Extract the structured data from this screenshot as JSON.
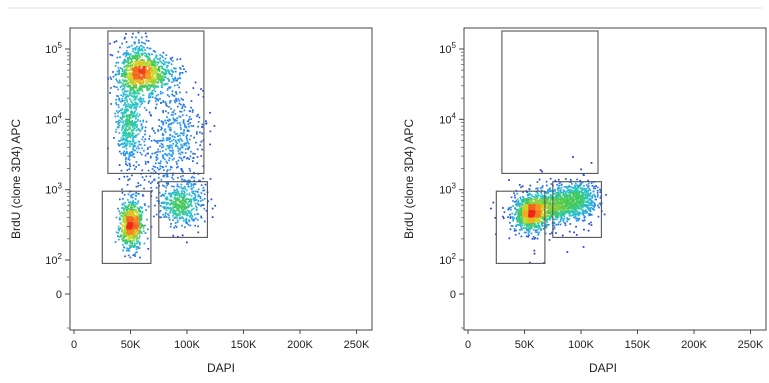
{
  "chart_data": [
    {
      "type": "scatter",
      "xlabel": "DAPI",
      "ylabel": "BrdU (clone 3D4) APC",
      "x_scale": "linear",
      "y_scale": "biexponential",
      "xlim": [
        -10000,
        265000
      ],
      "ylim": [
        -300,
        250000
      ],
      "x_ticks": [
        {
          "value": 0,
          "label": "0"
        },
        {
          "value": 50000,
          "label": "50K"
        },
        {
          "value": 100000,
          "label": "100K"
        },
        {
          "value": 150000,
          "label": "150K"
        },
        {
          "value": 200000,
          "label": "200K"
        },
        {
          "value": 250000,
          "label": "250K"
        }
      ],
      "y_ticks": [
        {
          "value": 0,
          "base": "0",
          "exp": ""
        },
        {
          "value": 100,
          "base": "10",
          "exp": "2"
        },
        {
          "value": 1000,
          "base": "10",
          "exp": "3"
        },
        {
          "value": 10000,
          "base": "10",
          "exp": "4"
        },
        {
          "value": 100000,
          "base": "10",
          "exp": "5"
        }
      ],
      "gates": [
        {
          "x0": 30000,
          "x1": 115000,
          "y0": 1700,
          "y1": 180000
        },
        {
          "x0": 25000,
          "x1": 68000,
          "y0": 90,
          "y1": 950
        },
        {
          "x0": 75000,
          "x1": 118000,
          "y0": 210,
          "y1": 1300
        }
      ],
      "populations": [
        {
          "cx": 65000,
          "cy": 45000,
          "sx": 13000,
          "sy": 0.13,
          "n": 650
        },
        {
          "cx": 55000,
          "cy": 50000,
          "sx": 8000,
          "sy": 0.25,
          "n": 500
        },
        {
          "cx": 48000,
          "cy": 9000,
          "sx": 6000,
          "sy": 0.3,
          "n": 420
        },
        {
          "cx": 90000,
          "cy": 7000,
          "sx": 12000,
          "sy": 0.32,
          "n": 330
        },
        {
          "cx": 50000,
          "cy": 330,
          "sx": 5000,
          "sy": 0.18,
          "n": 700
        },
        {
          "cx": 95000,
          "cy": 650,
          "sx": 10000,
          "sy": 0.16,
          "n": 460
        },
        {
          "cx": 70000,
          "cy": 2500,
          "sx": 14000,
          "sy": 0.35,
          "n": 160
        }
      ]
    },
    {
      "type": "scatter",
      "xlabel": "DAPI",
      "ylabel": "BrdU (clone 3D4) APC",
      "x_scale": "linear",
      "y_scale": "biexponential",
      "xlim": [
        -10000,
        265000
      ],
      "ylim": [
        -300,
        250000
      ],
      "x_ticks": [
        {
          "value": 0,
          "label": "0"
        },
        {
          "value": 50000,
          "label": "50K"
        },
        {
          "value": 100000,
          "label": "100K"
        },
        {
          "value": 150000,
          "label": "150K"
        },
        {
          "value": 200000,
          "label": "200K"
        },
        {
          "value": 250000,
          "label": "250K"
        }
      ],
      "y_ticks": [
        {
          "value": 0,
          "base": "0",
          "exp": ""
        },
        {
          "value": 100,
          "base": "10",
          "exp": "2"
        },
        {
          "value": 1000,
          "base": "10",
          "exp": "3"
        },
        {
          "value": 10000,
          "base": "10",
          "exp": "4"
        },
        {
          "value": 100000,
          "base": "10",
          "exp": "5"
        }
      ],
      "gates": [
        {
          "x0": 30000,
          "x1": 115000,
          "y0": 1700,
          "y1": 180000
        },
        {
          "x0": 25000,
          "x1": 68000,
          "y0": 90,
          "y1": 950
        },
        {
          "x0": 75000,
          "x1": 118000,
          "y0": 210,
          "y1": 1300
        }
      ],
      "populations": [
        {
          "cx": 55000,
          "cy": 480,
          "sx": 7000,
          "sy": 0.12,
          "n": 850
        },
        {
          "cx": 75000,
          "cy": 600,
          "sx": 11000,
          "sy": 0.12,
          "n": 650
        },
        {
          "cx": 97000,
          "cy": 780,
          "sx": 9000,
          "sy": 0.12,
          "n": 500
        },
        {
          "cx": 65000,
          "cy": 500,
          "sx": 20000,
          "sy": 0.25,
          "n": 180
        }
      ]
    }
  ]
}
